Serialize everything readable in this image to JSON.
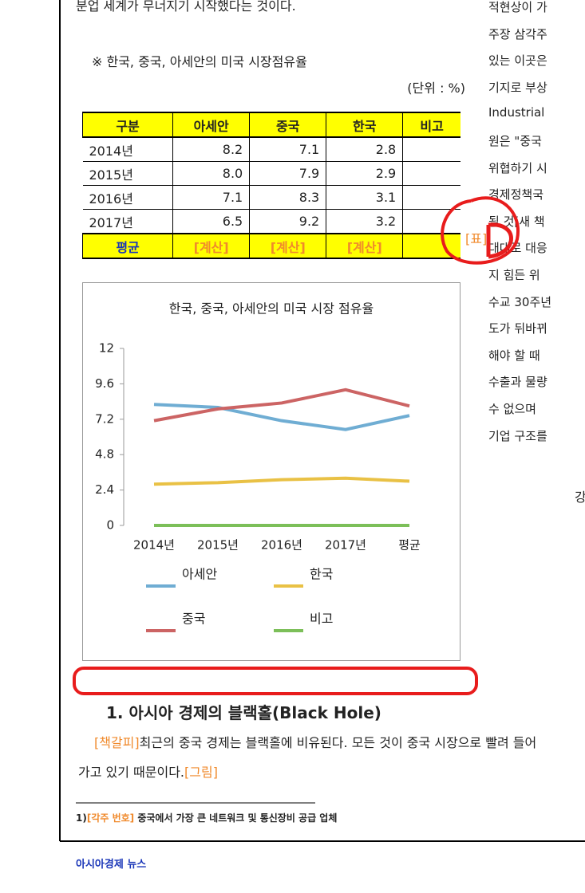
{
  "document": {
    "intro_tail": "분업 세계가 무너지기 시작했다는 것이다.",
    "table_caption": "※ 한국, 중국, 아세안의 미국 시장점유율",
    "unit": "(단위 : %)",
    "table": {
      "header": [
        "구분",
        "아세안",
        "중국",
        "한국",
        "비고"
      ],
      "rows": [
        [
          "2014년",
          "8.2",
          "7.1",
          "2.8"
        ],
        [
          "2015년",
          "8.0",
          "7.9",
          "2.9"
        ],
        [
          "2016년",
          "7.1",
          "8.3",
          "3.1"
        ],
        [
          "2017년",
          "6.5",
          "9.2",
          "3.2"
        ],
        [
          "평균",
          "[계산]",
          "[계산]",
          "[계산]"
        ]
      ]
    },
    "heading": "1. 아시아 경제의 블랙홀(Black Hole)",
    "bookmark_field": "[책갈피]",
    "body": "최근의 중국 경제는 블랙홀에 비유된다. 모든 것이 중국 시장으로 빨려 들어가고 있기 때문이다.",
    "figure_field": "[그림]",
    "footnote": {
      "number": "1)",
      "field": "[각주 번호]",
      "text": "중국에서 가장 큰 네트워크 및 통신장비 공급 업체"
    },
    "footer": "아시아경제 뉴스",
    "right_column": [
      "적현상이 가",
      "주장 삼각주",
      "있는 이곳은",
      "기지로 부상",
      "Industrial",
      "원은 \"중국",
      "위협하기 시",
      "경제정책국",
      "될 것[새 책",
      "대대로 대응",
      "지 힘든 위",
      "수교 30주년",
      "도가 뒤바뀌",
      "해야 할 때",
      "수출과 물량",
      "수 없으며",
      "기업 구조를"
    ],
    "right_tail": "강",
    "overlay_field": "[표]"
  },
  "chart_data": {
    "type": "line",
    "title": "한국, 중국, 아세안의 미국 시장 점유율",
    "categories": [
      "2014년",
      "2015년",
      "2016년",
      "2017년",
      "평균"
    ],
    "series": [
      {
        "name": "아세안",
        "color": "#6fadd3",
        "values": [
          8.2,
          8.0,
          7.1,
          6.5,
          7.45
        ]
      },
      {
        "name": "한국",
        "color": "#e9c145",
        "values": [
          2.8,
          2.9,
          3.1,
          3.2,
          3.0
        ]
      },
      {
        "name": "중국",
        "color": "#cc6464",
        "values": [
          7.1,
          7.9,
          8.3,
          9.2,
          8.1
        ]
      },
      {
        "name": "비고",
        "color": "#7cbf59",
        "values": [
          0,
          0,
          0,
          0,
          0
        ]
      }
    ],
    "ylim": [
      0,
      12
    ],
    "yticks": [
      0,
      2.4,
      4.8,
      7.2,
      9.6,
      12
    ],
    "grid": false
  }
}
